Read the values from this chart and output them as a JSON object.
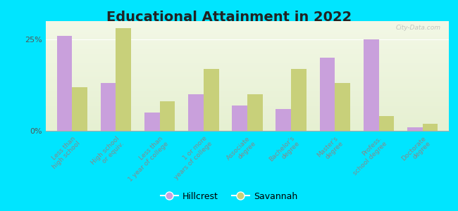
{
  "title": "Educational Attainment in 2022",
  "categories": [
    "Less than\nhigh school",
    "High school\nor equiv.",
    "Less than\n1 year of college",
    "1 or more\nyears of college",
    "Associate\ndegree",
    "Bachelor's\ndegree",
    "Master's\ndegree",
    "Profess.\nschool degree",
    "Doctorate\ndegree"
  ],
  "hillcrest": [
    26,
    13,
    5,
    10,
    7,
    6,
    20,
    25,
    1
  ],
  "savannah": [
    12,
    28,
    8,
    17,
    10,
    17,
    13,
    4,
    2
  ],
  "hillcrest_color": "#c9a0dc",
  "savannah_color": "#c8d07a",
  "background_outer": "#00e5ff",
  "ylim": [
    0,
    30
  ],
  "yticks": [
    0,
    25
  ],
  "ytick_labels": [
    "0%",
    "25%"
  ],
  "bar_width": 0.35,
  "title_fontsize": 14,
  "tick_fontsize": 6.5,
  "legend_fontsize": 9,
  "watermark": "City-Data.com"
}
